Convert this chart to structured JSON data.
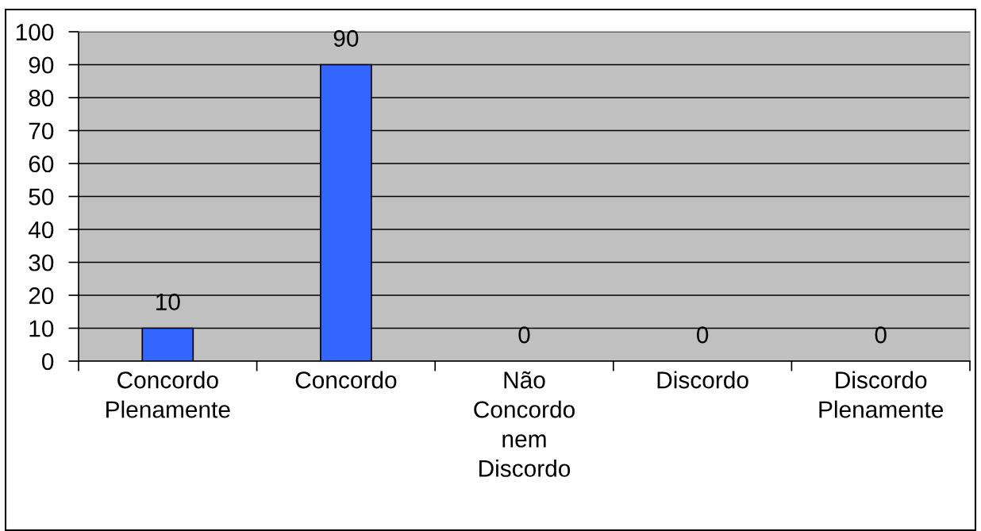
{
  "chart_data": {
    "type": "bar",
    "categories": [
      "Concordo Plenamente",
      "Concordo",
      "Não Concordo nem Discordo",
      "Discordo",
      "Discordo Plenamente"
    ],
    "values": [
      10,
      90,
      0,
      0,
      0
    ],
    "color": "#3366ff",
    "ylim": [
      0,
      100
    ],
    "yticks": [
      0,
      10,
      20,
      30,
      40,
      50,
      60,
      70,
      80,
      90,
      100
    ],
    "grid": "y",
    "data_labels": true
  }
}
